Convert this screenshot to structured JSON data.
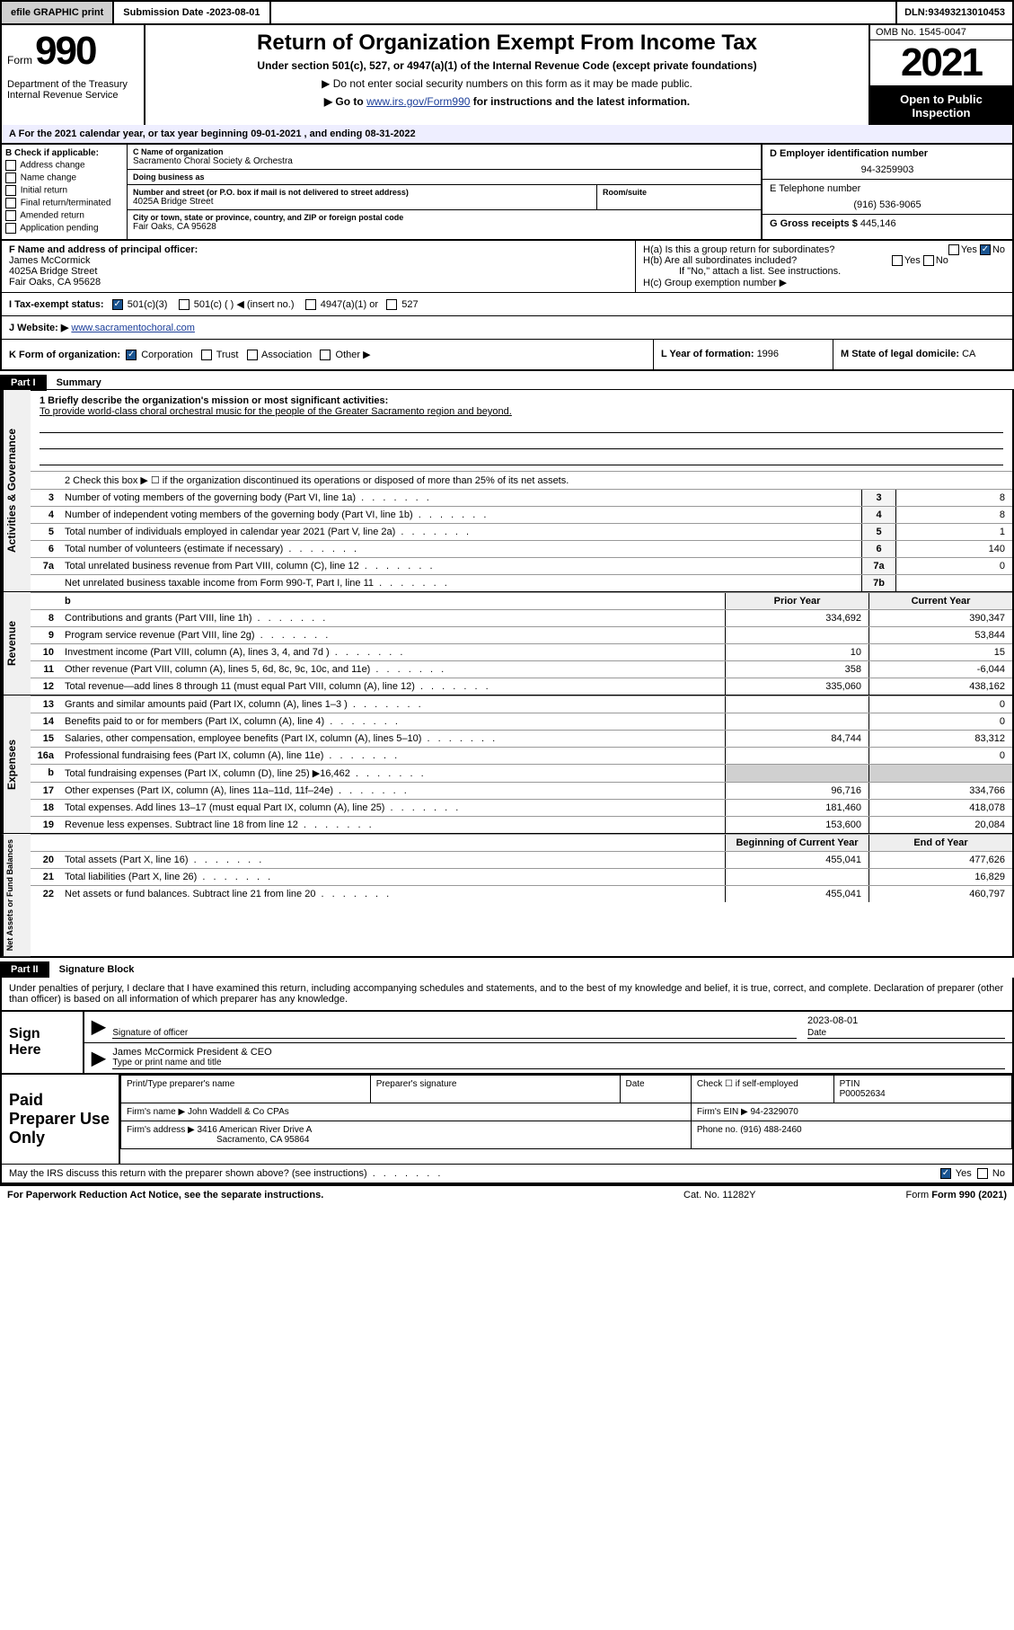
{
  "topbar": {
    "efile": "efile GRAPHIC print",
    "sub_date_label": "Submission Date - ",
    "sub_date": "2023-08-01",
    "dln_label": "DLN: ",
    "dln": "93493213010453"
  },
  "header": {
    "form_label": "Form",
    "form_num": "990",
    "dept": "Department of the Treasury\nInternal Revenue Service",
    "title": "Return of Organization Exempt From Income Tax",
    "sub1": "Under section 501(c), 527, or 4947(a)(1) of the Internal Revenue Code (except private foundations)",
    "sub2": "▶ Do not enter social security numbers on this form as it may be made public.",
    "sub3_pre": "▶ Go to ",
    "sub3_link": "www.irs.gov/Form990",
    "sub3_post": " for instructions and the latest information.",
    "omb": "OMB No. 1545-0047",
    "year": "2021",
    "open": "Open to Public Inspection"
  },
  "lineA": "For the 2021 calendar year, or tax year beginning 09-01-2021 , and ending 08-31-2022",
  "boxB": {
    "label": "B Check if applicable:",
    "opts": [
      "Address change",
      "Name change",
      "Initial return",
      "Final return/terminated",
      "Amended return",
      "Application pending"
    ]
  },
  "boxC": {
    "name_label": "C Name of organization",
    "name": "Sacramento Choral Society & Orchestra",
    "dba_label": "Doing business as",
    "dba": "",
    "street_label": "Number and street (or P.O. box if mail is not delivered to street address)",
    "room_label": "Room/suite",
    "street": "4025A Bridge Street",
    "city_label": "City or town, state or province, country, and ZIP or foreign postal code",
    "city": "Fair Oaks, CA  95628"
  },
  "boxD": {
    "label": "D Employer identification number",
    "val": "94-3259903"
  },
  "boxE": {
    "label": "E Telephone number",
    "val": "(916) 536-9065"
  },
  "boxG": {
    "label": "G Gross receipts $ ",
    "val": "445,146"
  },
  "boxF": {
    "label": "F Name and address of principal officer:",
    "name": "James McCormick",
    "addr": "4025A Bridge Street\nFair Oaks, CA  95628"
  },
  "boxH": {
    "ha": "H(a)  Is this a group return for subordinates?",
    "hb": "H(b)  Are all subordinates included?",
    "hb_note": "If \"No,\" attach a list. See instructions.",
    "hc": "H(c)  Group exemption number ▶"
  },
  "boxI": {
    "label": "I  Tax-exempt status:",
    "opts": [
      "501(c)(3)",
      "501(c) (  ) ◀ (insert no.)",
      "4947(a)(1) or",
      "527"
    ]
  },
  "boxJ": {
    "label": "J  Website: ▶ ",
    "val": "www.sacramentochoral.com"
  },
  "boxK": {
    "label": "K Form of organization:",
    "opts": [
      "Corporation",
      "Trust",
      "Association",
      "Other ▶"
    ]
  },
  "boxL": {
    "label": "L Year of formation: ",
    "val": "1996"
  },
  "boxM": {
    "label": "M State of legal domicile: ",
    "val": "CA"
  },
  "part1": {
    "num": "Part I",
    "title": "Summary"
  },
  "mission": {
    "q": "1  Briefly describe the organization's mission or most significant activities:",
    "a": "To provide world-class choral orchestral music for the people of the Greater Sacramento region and beyond."
  },
  "line2": "2  Check this box ▶ ☐  if the organization discontinued its operations or disposed of more than 25% of its net assets.",
  "gov_rows": [
    {
      "n": "3",
      "d": "Number of voting members of the governing body (Part VI, line 1a)",
      "k": "3",
      "v": "8"
    },
    {
      "n": "4",
      "d": "Number of independent voting members of the governing body (Part VI, line 1b)",
      "k": "4",
      "v": "8"
    },
    {
      "n": "5",
      "d": "Total number of individuals employed in calendar year 2021 (Part V, line 2a)",
      "k": "5",
      "v": "1"
    },
    {
      "n": "6",
      "d": "Total number of volunteers (estimate if necessary)",
      "k": "6",
      "v": "140"
    },
    {
      "n": "7a",
      "d": "Total unrelated business revenue from Part VIII, column (C), line 12",
      "k": "7a",
      "v": "0"
    },
    {
      "n": "",
      "d": "Net unrelated business taxable income from Form 990-T, Part I, line 11",
      "k": "7b",
      "v": ""
    }
  ],
  "rev_hdr": {
    "prior": "Prior Year",
    "curr": "Current Year"
  },
  "rev_rows": [
    {
      "n": "8",
      "d": "Contributions and grants (Part VIII, line 1h)",
      "p": "334,692",
      "c": "390,347"
    },
    {
      "n": "9",
      "d": "Program service revenue (Part VIII, line 2g)",
      "p": "",
      "c": "53,844"
    },
    {
      "n": "10",
      "d": "Investment income (Part VIII, column (A), lines 3, 4, and 7d )",
      "p": "10",
      "c": "15"
    },
    {
      "n": "11",
      "d": "Other revenue (Part VIII, column (A), lines 5, 6d, 8c, 9c, 10c, and 11e)",
      "p": "358",
      "c": "-6,044"
    },
    {
      "n": "12",
      "d": "Total revenue—add lines 8 through 11 (must equal Part VIII, column (A), line 12)",
      "p": "335,060",
      "c": "438,162"
    }
  ],
  "exp_rows": [
    {
      "n": "13",
      "d": "Grants and similar amounts paid (Part IX, column (A), lines 1–3 )",
      "p": "",
      "c": "0"
    },
    {
      "n": "14",
      "d": "Benefits paid to or for members (Part IX, column (A), line 4)",
      "p": "",
      "c": "0"
    },
    {
      "n": "15",
      "d": "Salaries, other compensation, employee benefits (Part IX, column (A), lines 5–10)",
      "p": "84,744",
      "c": "83,312"
    },
    {
      "n": "16a",
      "d": "Professional fundraising fees (Part IX, column (A), line 11e)",
      "p": "",
      "c": "0"
    },
    {
      "n": "b",
      "d": "Total fundraising expenses (Part IX, column (D), line 25) ▶16,462",
      "p": "shade",
      "c": "shade"
    },
    {
      "n": "17",
      "d": "Other expenses (Part IX, column (A), lines 11a–11d, 11f–24e)",
      "p": "96,716",
      "c": "334,766"
    },
    {
      "n": "18",
      "d": "Total expenses. Add lines 13–17 (must equal Part IX, column (A), line 25)",
      "p": "181,460",
      "c": "418,078"
    },
    {
      "n": "19",
      "d": "Revenue less expenses. Subtract line 18 from line 12",
      "p": "153,600",
      "c": "20,084"
    }
  ],
  "na_hdr": {
    "prior": "Beginning of Current Year",
    "curr": "End of Year"
  },
  "na_rows": [
    {
      "n": "20",
      "d": "Total assets (Part X, line 16)",
      "p": "455,041",
      "c": "477,626"
    },
    {
      "n": "21",
      "d": "Total liabilities (Part X, line 26)",
      "p": "",
      "c": "16,829"
    },
    {
      "n": "22",
      "d": "Net assets or fund balances. Subtract line 21 from line 20",
      "p": "455,041",
      "c": "460,797"
    }
  ],
  "vlabels": {
    "gov": "Activities & Governance",
    "rev": "Revenue",
    "exp": "Expenses",
    "na": "Net Assets or Fund Balances"
  },
  "part2": {
    "num": "Part II",
    "title": "Signature Block"
  },
  "sig": {
    "decl": "Under penalties of perjury, I declare that I have examined this return, including accompanying schedules and statements, and to the best of my knowledge and belief, it is true, correct, and complete. Declaration of preparer (other than officer) is based on all information of which preparer has any knowledge.",
    "here": "Sign Here",
    "sig_label": "Signature of officer",
    "date_label": "Date",
    "date_val": "2023-08-01",
    "name": "James McCormick  President & CEO",
    "name_label": "Type or print name and title"
  },
  "prep": {
    "label": "Paid Preparer Use Only",
    "h1": "Print/Type preparer's name",
    "h2": "Preparer's signature",
    "h3": "Date",
    "h4_a": "Check ☐ if self-employed",
    "h4_b": "PTIN",
    "ptin": "P00052634",
    "firm_label": "Firm's name  ▶ ",
    "firm": "John Waddell & Co CPAs",
    "ein_label": "Firm's EIN ▶ ",
    "ein": "94-2329070",
    "addr_label": "Firm's address ▶ ",
    "addr": "3416 American River Drive A",
    "city": "Sacramento, CA  95864",
    "phone_label": "Phone no. ",
    "phone": "(916) 488-2460"
  },
  "footer": {
    "irs_q": "May the IRS discuss this return with the preparer shown above? (see instructions)",
    "pra": "For Paperwork Reduction Act Notice, see the separate instructions.",
    "cat": "Cat. No. 11282Y",
    "form": "Form 990 (2021)"
  }
}
